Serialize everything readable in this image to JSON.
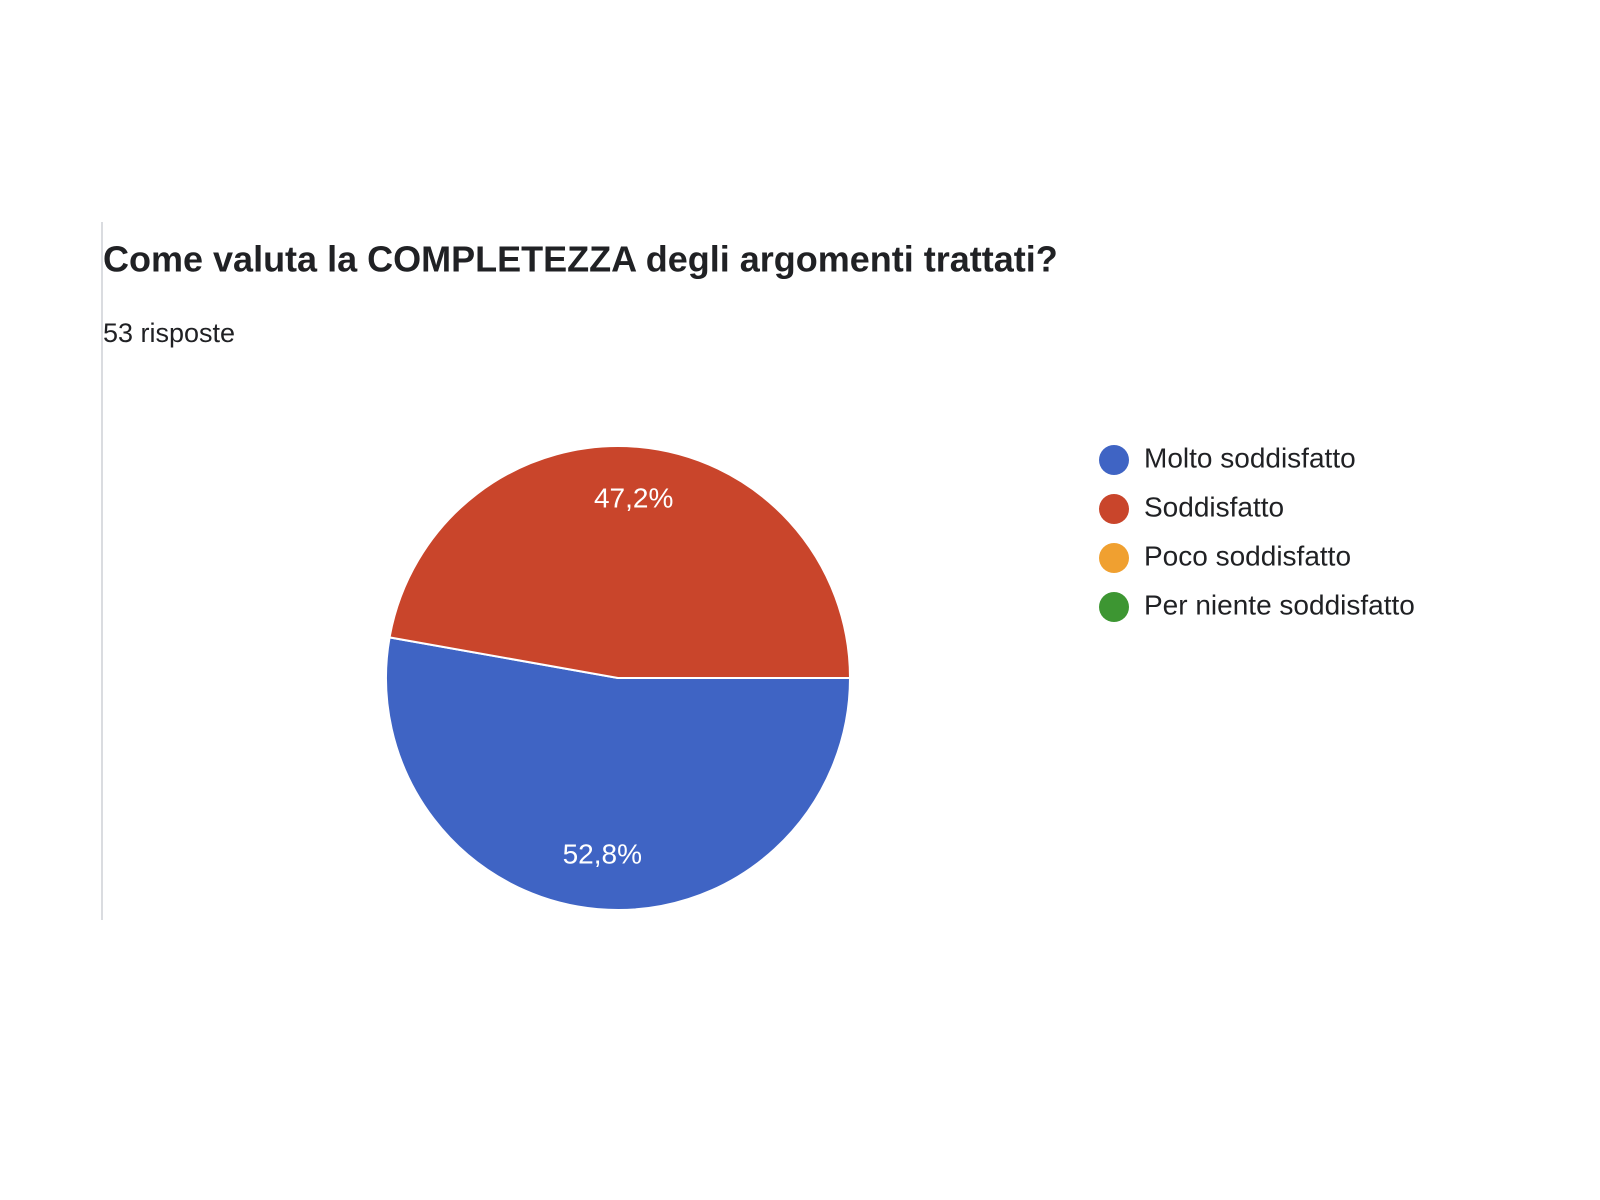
{
  "chart_data": {
    "type": "pie",
    "title": "Come valuta la COMPLETEZZA degli argomenti trattati?",
    "subtitle": "53 risposte",
    "categories": [
      "Molto soddisfatto",
      "Soddisfatto",
      "Poco soddisfatto",
      "Per niente soddisfatto"
    ],
    "values": [
      52.8,
      47.2,
      0,
      0
    ],
    "value_labels": [
      "52,8%",
      "47,2%",
      null,
      null
    ],
    "colors": [
      "#3f64c4",
      "#c9452b",
      "#f0a030",
      "#3d9632"
    ],
    "legend": "right"
  }
}
